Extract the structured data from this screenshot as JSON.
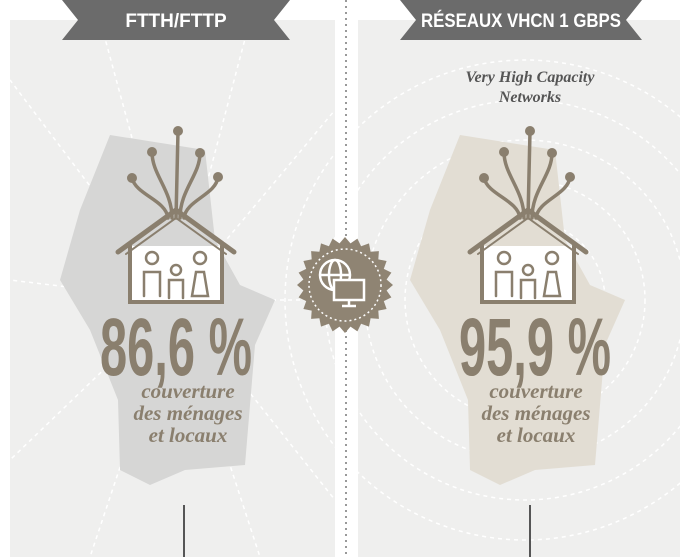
{
  "panels": [
    {
      "title": "FTTH/FTTP",
      "percentage": "86,6 %",
      "caption": [
        "couverture",
        "des ménages",
        "et locaux"
      ]
    },
    {
      "title": "RÉSEAUX VHCN 1 GBPS",
      "subtitle": [
        "Very High Capacity",
        "Networks"
      ],
      "percentage": "95,9 %",
      "caption": [
        "couverture",
        "des ménages",
        "et locaux"
      ]
    }
  ]
}
